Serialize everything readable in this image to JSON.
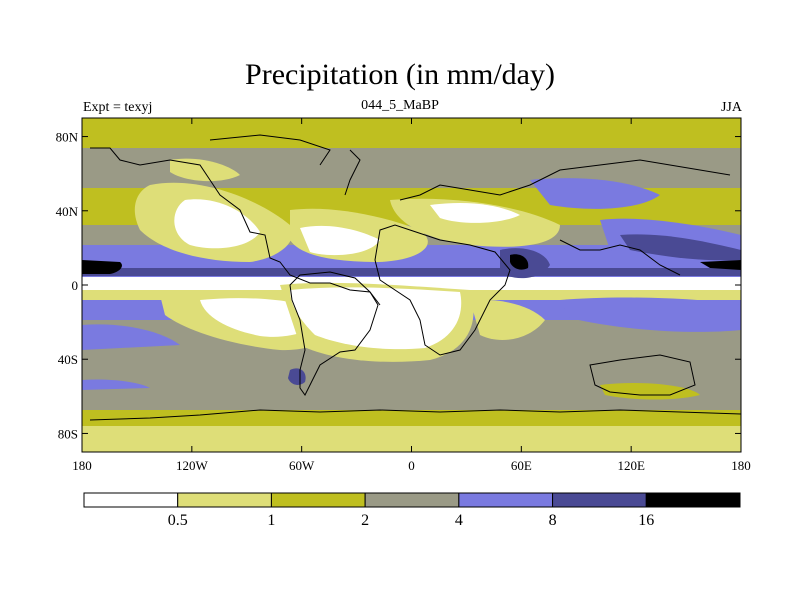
{
  "plot": {
    "title": "Precipitation (in mm/day)",
    "left_string": "Expt = texyj",
    "center_string": "044_5_MaBP",
    "right_string": "JJA"
  },
  "axes": {
    "lat_ticks": [
      {
        "lat": 80,
        "label": "80N"
      },
      {
        "lat": 40,
        "label": "40N"
      },
      {
        "lat": 0,
        "label": "0"
      },
      {
        "lat": -40,
        "label": "40S"
      },
      {
        "lat": -80,
        "label": "80S"
      }
    ],
    "lon_ticks": [
      {
        "lon": -180,
        "label": "180"
      },
      {
        "lon": -120,
        "label": "120W"
      },
      {
        "lon": -60,
        "label": "60W"
      },
      {
        "lon": 0,
        "label": "0"
      },
      {
        "lon": 60,
        "label": "60E"
      },
      {
        "lon": 120,
        "label": "120E"
      },
      {
        "lon": 180,
        "label": "180"
      }
    ],
    "lon_range": [
      -180,
      180
    ],
    "lat_range": [
      -90,
      90
    ]
  },
  "colorbar": {
    "colors": [
      "#ffffff",
      "#dede78",
      "#bfbf20",
      "#9a9a86",
      "#7a7ae0",
      "#4a4a94",
      "#000000"
    ],
    "labels": [
      "0.5",
      "1",
      "2",
      "4",
      "8",
      "16"
    ]
  }
}
